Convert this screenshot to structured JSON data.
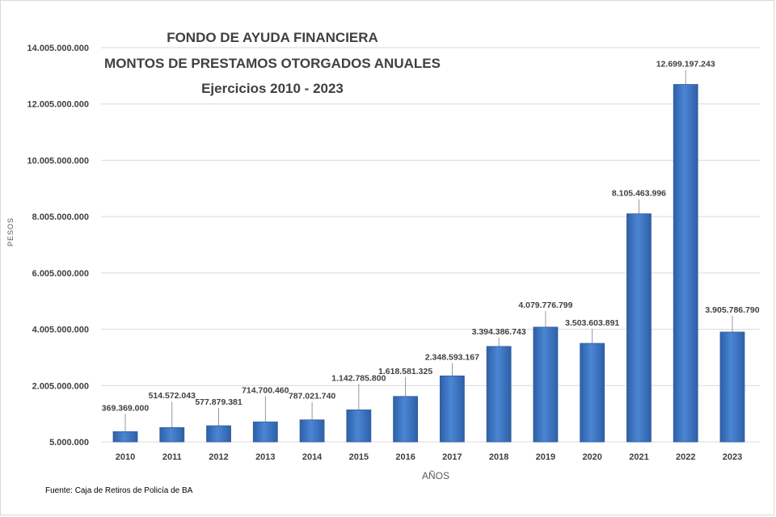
{
  "chart_data": {
    "type": "bar",
    "title_lines": [
      "FONDO DE AYUDA FINANCIERA",
      "MONTOS  DE  PRESTAMOS  OTORGADOS  ANUALES",
      "Ejercicios  2010 - 2023"
    ],
    "xlabel": "AÑOS",
    "ylabel": "PESOS",
    "categories": [
      "2010",
      "2011",
      "2012",
      "2013",
      "2014",
      "2015",
      "2016",
      "2017",
      "2018",
      "2019",
      "2020",
      "2021",
      "2022",
      "2023"
    ],
    "values": [
      369369000,
      514572043,
      577879381,
      714700460,
      787021740,
      1142785800,
      1618581325,
      2348593167,
      3394386743,
      4079776799,
      3503603891,
      8105463996,
      12699197243,
      3905786790
    ],
    "value_labels": [
      "369.369.000",
      "514.572.043",
      "577.879.381",
      "714.700.460",
      "787.021.740",
      "1.142.785.800",
      "1.618.581.325",
      "2.348.593.167",
      "3.394.386.743",
      "4.079.776.799",
      "3.503.603.891",
      "8.105.463.996",
      "12.699.197.243",
      "3.905.786.790"
    ],
    "yticks": [
      5000000,
      2005000000,
      4005000000,
      6005000000,
      8005000000,
      10005000000,
      12005000000,
      14005000000
    ],
    "ytick_labels": [
      "5.000.000",
      "2.005.000.000",
      "4.005.000.000",
      "6.005.000.000",
      "8.005.000.000",
      "10.005.000.000",
      "12.005.000.000",
      "14.005.000.000"
    ],
    "ylim": [
      5000000,
      14005000000
    ],
    "grid": true,
    "legend": "none",
    "bar_color": "#3d74c4",
    "bar_edge_color": "#2e5d9f",
    "grid_color": "#d9d9d9",
    "text_color": "#404040"
  },
  "footer": {
    "source": "Fuente: Caja de Retiros de Policía de BA"
  }
}
